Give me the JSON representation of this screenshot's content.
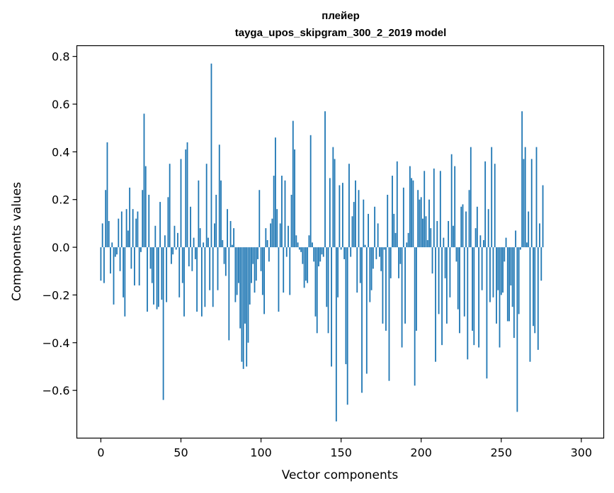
{
  "chart_data": {
    "type": "bar",
    "title_line1": "плейер",
    "title_line2": "tayga_upos_skipgram_300_2_2019 model",
    "xlabel": "Vector components",
    "ylabel": "Components values",
    "xlim": [
      -15,
      314
    ],
    "ylim": [
      -0.8,
      0.845
    ],
    "x_ticks": [
      0,
      50,
      100,
      150,
      200,
      250,
      300
    ],
    "y_ticks": [
      -0.6,
      -0.4,
      -0.2,
      0.0,
      0.2,
      0.4,
      0.6,
      0.8
    ],
    "x_tick_labels": [
      "0",
      "50",
      "100",
      "150",
      "200",
      "250",
      "300"
    ],
    "y_tick_labels": [
      "−0.6",
      "−0.4",
      "−0.2",
      "0.0",
      "0.2",
      "0.4",
      "0.6",
      "0.8"
    ],
    "bar_color": "#1f77b4",
    "values": [
      -0.14,
      0.1,
      -0.15,
      0.24,
      0.44,
      0.11,
      -0.11,
      0.02,
      -0.24,
      -0.04,
      -0.03,
      0.12,
      -0.1,
      0.15,
      -0.21,
      -0.29,
      0.16,
      0.07,
      0.25,
      -0.09,
      0.16,
      -0.16,
      0.12,
      0.15,
      -0.16,
      -0.02,
      0.24,
      0.56,
      0.34,
      -0.27,
      0.22,
      -0.09,
      -0.15,
      -0.24,
      0.09,
      -0.26,
      -0.25,
      0.19,
      -0.22,
      -0.64,
      0.05,
      -0.23,
      0.21,
      0.35,
      -0.07,
      -0.03,
      0.09,
      -0.01,
      0.06,
      -0.21,
      0.37,
      -0.15,
      -0.29,
      0.41,
      0.44,
      -0.08,
      0.17,
      -0.1,
      0.04,
      -0.05,
      -0.27,
      0.28,
      0.08,
      -0.29,
      0.02,
      -0.25,
      0.35,
      0.04,
      -0.18,
      0.77,
      -0.25,
      0.1,
      0.22,
      -0.18,
      0.43,
      0.28,
      0.03,
      -0.07,
      -0.12,
      0.16,
      -0.39,
      0.11,
      0.01,
      0.08,
      -0.23,
      -0.2,
      -0.15,
      -0.34,
      -0.48,
      -0.51,
      -0.32,
      -0.5,
      -0.4,
      -0.24,
      -0.15,
      -0.07,
      -0.19,
      -0.14,
      -0.05,
      0.24,
      -0.1,
      -0.2,
      -0.28,
      0.08,
      0.03,
      -0.06,
      0.1,
      0.12,
      0.3,
      0.46,
      0.16,
      -0.27,
      0.1,
      0.3,
      -0.19,
      0.28,
      -0.04,
      0.09,
      -0.2,
      0.22,
      0.53,
      0.41,
      0.05,
      0.02,
      -0.01,
      -0.02,
      -0.07,
      -0.17,
      -0.14,
      -0.15,
      0.05,
      0.47,
      0.02,
      -0.06,
      -0.29,
      -0.36,
      -0.08,
      -0.06,
      -0.03,
      -0.04,
      0.57,
      -0.25,
      -0.36,
      0.29,
      -0.5,
      0.42,
      0.37,
      -0.73,
      -0.21,
      0.26,
      -0.01,
      0.27,
      -0.05,
      -0.49,
      -0.66,
      0.35,
      -0.04,
      0.13,
      0.19,
      0.28,
      -0.19,
      0.24,
      -0.15,
      -0.61,
      0.2,
      0.01,
      -0.53,
      0.14,
      -0.23,
      -0.18,
      -0.09,
      0.17,
      -0.05,
      0.1,
      -0.04,
      -0.1,
      -0.32,
      -0.01,
      -0.35,
      0.22,
      -0.56,
      -0.13,
      0.3,
      0.14,
      0.06,
      0.36,
      -0.13,
      -0.07,
      -0.42,
      0.25,
      -0.32,
      0.02,
      0.06,
      0.34,
      0.29,
      0.28,
      -0.58,
      -0.35,
      0.24,
      0.2,
      0.21,
      0.12,
      0.32,
      0.13,
      0.03,
      0.2,
      0.08,
      -0.11,
      0.33,
      -0.48,
      0.11,
      -0.28,
      0.32,
      -0.41,
      0.04,
      -0.13,
      -0.32,
      0.11,
      -0.21,
      0.39,
      0.09,
      0.34,
      -0.06,
      -0.26,
      -0.36,
      0.17,
      0.18,
      -0.29,
      0.15,
      -0.47,
      0.24,
      0.42,
      -0.35,
      -0.41,
      0.08,
      0.17,
      -0.42,
      0.05,
      -0.18,
      0.03,
      0.36,
      -0.55,
      0.16,
      -0.23,
      0.42,
      -0.21,
      0.35,
      -0.32,
      -0.18,
      -0.42,
      -0.2,
      -0.19,
      -0.06,
      0.04,
      -0.31,
      -0.31,
      -0.16,
      -0.25,
      -0.38,
      0.07,
      -0.69,
      -0.28,
      -0.01,
      0.57,
      0.37,
      0.42,
      0.02,
      0.15,
      -0.48,
      0.37,
      -0.33,
      -0.36,
      0.42,
      -0.43,
      0.1,
      -0.14,
      0.26
    ]
  }
}
